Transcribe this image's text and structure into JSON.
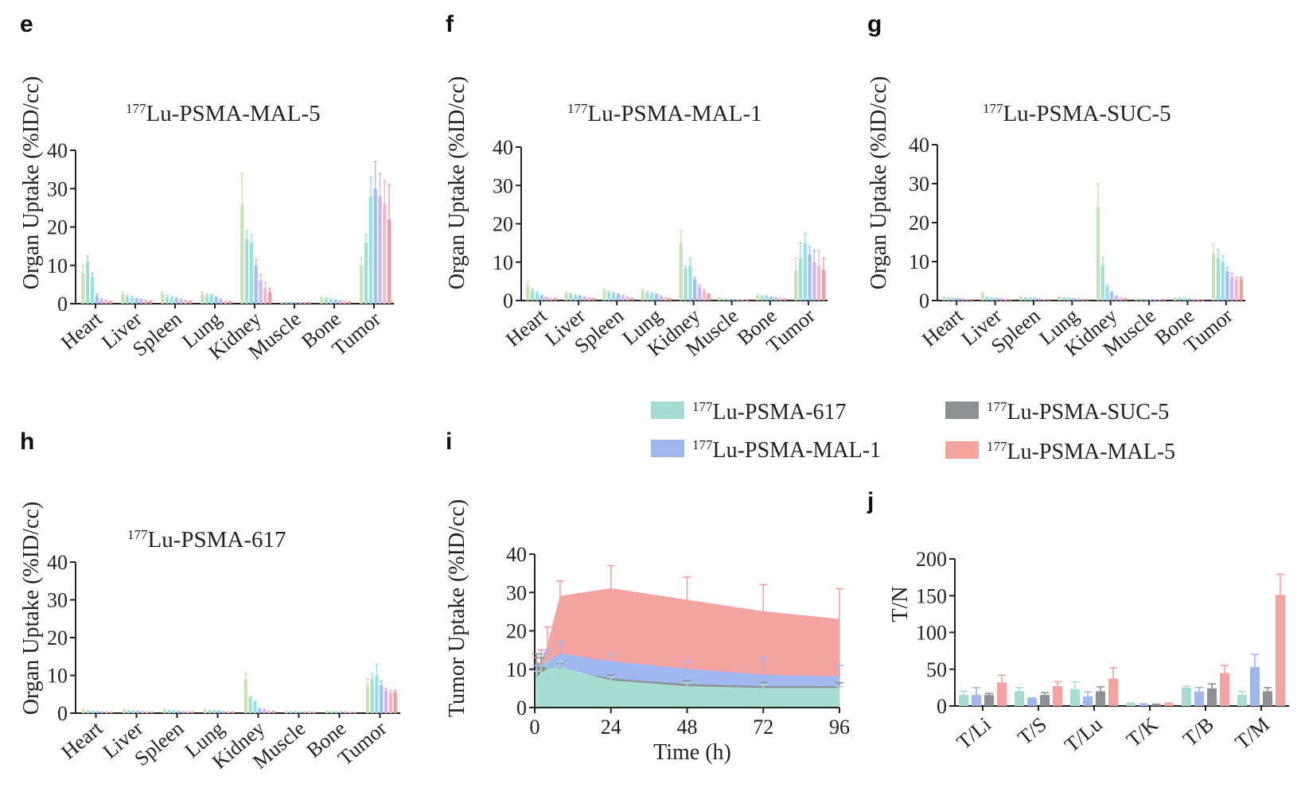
{
  "colors": {
    "mal5": "#f4a3a0",
    "suc5": "#8f9092",
    "mal1": "#a0b8ef",
    "p617": "#a6ddd0",
    "timepoint_palette": [
      "#c9e2b5",
      "#a6ddd0",
      "#8fe3ea",
      "#a7bcf2",
      "#cdb5f0",
      "#f2b7cb",
      "#f39c9c"
    ]
  },
  "legend": {
    "items": [
      {
        "key": "p617",
        "sup": "177",
        "text": "Lu-PSMA-617"
      },
      {
        "key": "mal1",
        "sup": "177",
        "text": "Lu-PSMA-MAL-1"
      },
      {
        "key": "suc5",
        "sup": "177",
        "text": "Lu-PSMA-SUC-5"
      },
      {
        "key": "mal5",
        "sup": "177",
        "text": "Lu-PSMA-MAL-5"
      }
    ]
  },
  "chart_data": [
    {
      "panel": "e",
      "type": "bar",
      "title_sup": "177",
      "title": "Lu-PSMA-MAL-5",
      "ylabel": "Organ Uptake (%ID/cc)",
      "ylim": [
        0,
        40
      ],
      "yticks": [
        0,
        10,
        20,
        30,
        40
      ],
      "categories": [
        "Heart",
        "Liver",
        "Spleen",
        "Lung",
        "Kidney",
        "Muscle",
        "Bone",
        "Tumor"
      ],
      "values": [
        [
          8,
          11,
          7,
          2,
          1,
          0.8,
          0.5
        ],
        [
          2.5,
          1.8,
          1.5,
          1.2,
          1,
          0.8,
          0.6
        ],
        [
          2.5,
          1.8,
          1.5,
          1.3,
          1,
          0.8,
          0.6
        ],
        [
          2.5,
          2,
          2,
          1.5,
          1,
          0.5,
          0.5
        ],
        [
          26,
          17,
          16,
          10,
          6,
          4,
          3
        ],
        [
          0.3,
          0.3,
          0.3,
          0.2,
          0.2,
          0.2,
          0.2
        ],
        [
          1.5,
          1.2,
          1,
          0.8,
          0.6,
          0.5,
          0.4
        ],
        [
          10,
          16,
          28,
          30,
          28,
          26,
          22
        ]
      ],
      "errors": [
        [
          2,
          1.5,
          1,
          0.5,
          0.3,
          0.2,
          0.1
        ],
        [
          0.5,
          0.4,
          0.3,
          0.2,
          0.2,
          0.1,
          0.1
        ],
        [
          0.5,
          0.4,
          0.3,
          0.2,
          0.2,
          0.1,
          0.1
        ],
        [
          0.5,
          0.4,
          0.3,
          0.2,
          0.2,
          0.1,
          0.1
        ],
        [
          8,
          2,
          2,
          1.5,
          1.5,
          1.5,
          1
        ],
        [
          0.1,
          0.1,
          0.1,
          0.1,
          0.1,
          0.1,
          0.1
        ],
        [
          0.3,
          0.3,
          0.3,
          0.2,
          0.2,
          0.1,
          0.1
        ],
        [
          2,
          2,
          5,
          7,
          6,
          6,
          9
        ]
      ]
    },
    {
      "panel": "f",
      "type": "bar",
      "title_sup": "177",
      "title": "Lu-PSMA-MAL-1",
      "ylabel": "Organ Uptake (%ID/cc)",
      "ylim": [
        0,
        40
      ],
      "yticks": [
        0,
        10,
        20,
        30,
        40
      ],
      "categories": [
        "Heart",
        "Liver",
        "Spleen",
        "Lung",
        "Kidney",
        "Muscle",
        "Bone",
        "Tumor"
      ],
      "values": [
        [
          4,
          2.5,
          2,
          1.2,
          0.8,
          0.5,
          0.4
        ],
        [
          1.8,
          1.5,
          1.2,
          1,
          0.8,
          0.6,
          0.4
        ],
        [
          2.5,
          2,
          1.8,
          1.5,
          1.2,
          0.8,
          0.5
        ],
        [
          2.5,
          2,
          1.8,
          1.5,
          1,
          0.6,
          0.4
        ],
        [
          15,
          8.5,
          9,
          5.5,
          3.5,
          2.5,
          1.5
        ],
        [
          0.6,
          0.3,
          0.2,
          0.2,
          0.1,
          0.1,
          0.1
        ],
        [
          1.2,
          1,
          1,
          0.8,
          0.6,
          0.4,
          0.3
        ],
        [
          8,
          11,
          15,
          12,
          10,
          9,
          8
        ]
      ],
      "errors": [
        [
          1,
          0.5,
          0.3,
          0.2,
          0.1,
          0.1,
          0.1
        ],
        [
          0.3,
          0.3,
          0.2,
          0.2,
          0.1,
          0.1,
          0.1
        ],
        [
          0.4,
          0.3,
          0.3,
          0.2,
          0.2,
          0.1,
          0.1
        ],
        [
          0.4,
          0.3,
          0.3,
          0.2,
          0.2,
          0.1,
          0.1
        ],
        [
          3,
          0.5,
          2,
          0.5,
          0.5,
          0.3,
          0.2
        ],
        [
          0.1,
          0.1,
          0.1,
          0.1,
          0.1,
          0.1,
          0.1
        ],
        [
          0.2,
          0.2,
          0.2,
          0.1,
          0.1,
          0.1,
          0.1
        ],
        [
          3,
          4,
          2.5,
          2,
          3,
          4,
          3
        ]
      ]
    },
    {
      "panel": "g",
      "type": "bar",
      "title_sup": "177",
      "title": "Lu-PSMA-SUC-5",
      "ylabel": "Organ Uptake (%ID/cc)",
      "ylim": [
        0,
        40
      ],
      "yticks": [
        0,
        10,
        20,
        30,
        40
      ],
      "categories": [
        "Heart",
        "Liver",
        "Spleen",
        "Lung",
        "Kidney",
        "Muscle",
        "Bone",
        "Tumor"
      ],
      "values": [
        [
          0.8,
          0.6,
          0.5,
          0.4,
          0.3,
          0.2,
          0.2
        ],
        [
          1.8,
          0.8,
          0.6,
          0.5,
          0.4,
          0.3,
          0.2
        ],
        [
          0.8,
          0.6,
          0.5,
          0.4,
          0.3,
          0.2,
          0.2
        ],
        [
          0.8,
          0.6,
          0.5,
          0.4,
          0.3,
          0.2,
          0.2
        ],
        [
          24,
          9,
          3.5,
          2,
          1,
          0.6,
          0.4
        ],
        [
          0.3,
          0.2,
          0.2,
          0.1,
          0.1,
          0.1,
          0.1
        ],
        [
          0.6,
          0.5,
          0.4,
          0.3,
          0.2,
          0.2,
          0.1
        ],
        [
          12,
          11,
          10,
          7.5,
          6,
          5.5,
          5.5
        ]
      ],
      "errors": [
        [
          0.1,
          0.1,
          0.1,
          0.1,
          0.1,
          0.1,
          0.1
        ],
        [
          0.3,
          0.1,
          0.1,
          0.1,
          0.1,
          0.1,
          0.1
        ],
        [
          0.1,
          0.1,
          0.1,
          0.1,
          0.1,
          0.1,
          0.1
        ],
        [
          0.1,
          0.1,
          0.1,
          0.1,
          0.1,
          0.1,
          0.1
        ],
        [
          6,
          2,
          0.5,
          0.3,
          0.2,
          0.1,
          0.1
        ],
        [
          0.1,
          0.1,
          0.1,
          0.1,
          0.1,
          0.1,
          0.1
        ],
        [
          0.1,
          0.1,
          0.1,
          0.1,
          0.1,
          0.1,
          0.1
        ],
        [
          2.5,
          2,
          1.5,
          1,
          1,
          0.5,
          0.5
        ]
      ]
    },
    {
      "panel": "h",
      "type": "bar",
      "title_sup": "177",
      "title": "Lu-PSMA-617",
      "ylabel": "Organ Uptake (%ID/cc)",
      "ylim": [
        0,
        40
      ],
      "yticks": [
        0,
        10,
        20,
        30,
        40
      ],
      "categories": [
        "Heart",
        "Liver",
        "Spleen",
        "Lung",
        "Kidney",
        "Muscle",
        "Bone",
        "Tumor"
      ],
      "values": [
        [
          0.8,
          0.5,
          0.4,
          0.3,
          0.2,
          0.2,
          0.1
        ],
        [
          0.8,
          0.6,
          0.5,
          0.4,
          0.3,
          0.2,
          0.2
        ],
        [
          0.8,
          0.6,
          0.5,
          0.4,
          0.3,
          0.2,
          0.2
        ],
        [
          0.8,
          0.6,
          0.5,
          0.4,
          0.3,
          0.2,
          0.2
        ],
        [
          9,
          4,
          3,
          1,
          0.8,
          0.5,
          0.4
        ],
        [
          0.3,
          0.3,
          0.3,
          0.2,
          0.2,
          0.2,
          0.1
        ],
        [
          0.4,
          0.3,
          0.3,
          0.2,
          0.2,
          0.1,
          0.1
        ],
        [
          7.5,
          9,
          10,
          7.5,
          6,
          5.5,
          5.5
        ]
      ],
      "errors": [
        [
          0.1,
          0.1,
          0.1,
          0.1,
          0.1,
          0.1,
          0.1
        ],
        [
          0.2,
          0.1,
          0.1,
          0.1,
          0.1,
          0.1,
          0.1
        ],
        [
          0.2,
          0.1,
          0.1,
          0.1,
          0.1,
          0.1,
          0.1
        ],
        [
          0.2,
          0.1,
          0.1,
          0.1,
          0.1,
          0.1,
          0.1
        ],
        [
          1.5,
          0.3,
          0.3,
          0.2,
          0.2,
          0.1,
          0.1
        ],
        [
          0.1,
          0.1,
          0.1,
          0.1,
          0.1,
          0.1,
          0.1
        ],
        [
          0.1,
          0.1,
          0.1,
          0.1,
          0.1,
          0.1,
          0.1
        ],
        [
          1.5,
          1.5,
          3,
          1,
          0.5,
          0.5,
          0.5
        ]
      ]
    },
    {
      "panel": "i",
      "type": "area",
      "xlabel": "Time (h)",
      "ylabel": "Tumor Uptake (%ID/cc)",
      "xlim": [
        0,
        96
      ],
      "ylim": [
        0,
        40
      ],
      "xticks": [
        0,
        24,
        48,
        72,
        96
      ],
      "yticks": [
        0,
        10,
        20,
        30,
        40
      ],
      "x": [
        0.5,
        2,
        4,
        8,
        24,
        48,
        72,
        96
      ],
      "series": [
        {
          "key": "mal5",
          "values": [
            10,
            12,
            16,
            29,
            31,
            28,
            25,
            23
          ],
          "errors": [
            3,
            3,
            5,
            4,
            6,
            6,
            7,
            8
          ]
        },
        {
          "key": "mal1",
          "values": [
            8,
            11,
            12,
            14,
            12,
            10,
            8.5,
            8
          ],
          "errors": [
            3,
            3,
            3,
            3,
            2,
            2,
            4.5,
            3
          ]
        },
        {
          "key": "suc5",
          "values": [
            12,
            11,
            10,
            10,
            7.5,
            6,
            5.5,
            5.5
          ],
          "errors": [
            2,
            2,
            2,
            1.5,
            1,
            1,
            1,
            1
          ]
        },
        {
          "key": "p617",
          "values": [
            7.5,
            9,
            10,
            10.5,
            7,
            5.5,
            5,
            5
          ],
          "errors": [
            2,
            2,
            2,
            1.5,
            1,
            1,
            1,
            0.5
          ]
        }
      ]
    },
    {
      "panel": "j",
      "type": "bar",
      "ylabel": "T/N",
      "ylim": [
        0,
        200
      ],
      "yticks": [
        0,
        50,
        100,
        150,
        200
      ],
      "categories": [
        "T/Li",
        "T/S",
        "T/Lu",
        "T/K",
        "T/B",
        "T/M"
      ],
      "series": [
        {
          "key": "p617",
          "values": [
            15,
            20,
            23,
            3,
            25,
            15
          ],
          "errors": [
            5,
            5,
            10,
            1,
            2,
            5
          ]
        },
        {
          "key": "mal1",
          "values": [
            15,
            10,
            13,
            2,
            20,
            53
          ],
          "errors": [
            10,
            1,
            6,
            1,
            5,
            17
          ]
        },
        {
          "key": "suc5",
          "values": [
            15,
            15,
            20,
            2,
            24,
            20
          ],
          "errors": [
            2,
            3,
            6,
            0.5,
            6,
            5
          ]
        },
        {
          "key": "mal5",
          "values": [
            32,
            27,
            37,
            3,
            45,
            151
          ],
          "errors": [
            10,
            6,
            15,
            1,
            10,
            28
          ]
        }
      ]
    }
  ]
}
